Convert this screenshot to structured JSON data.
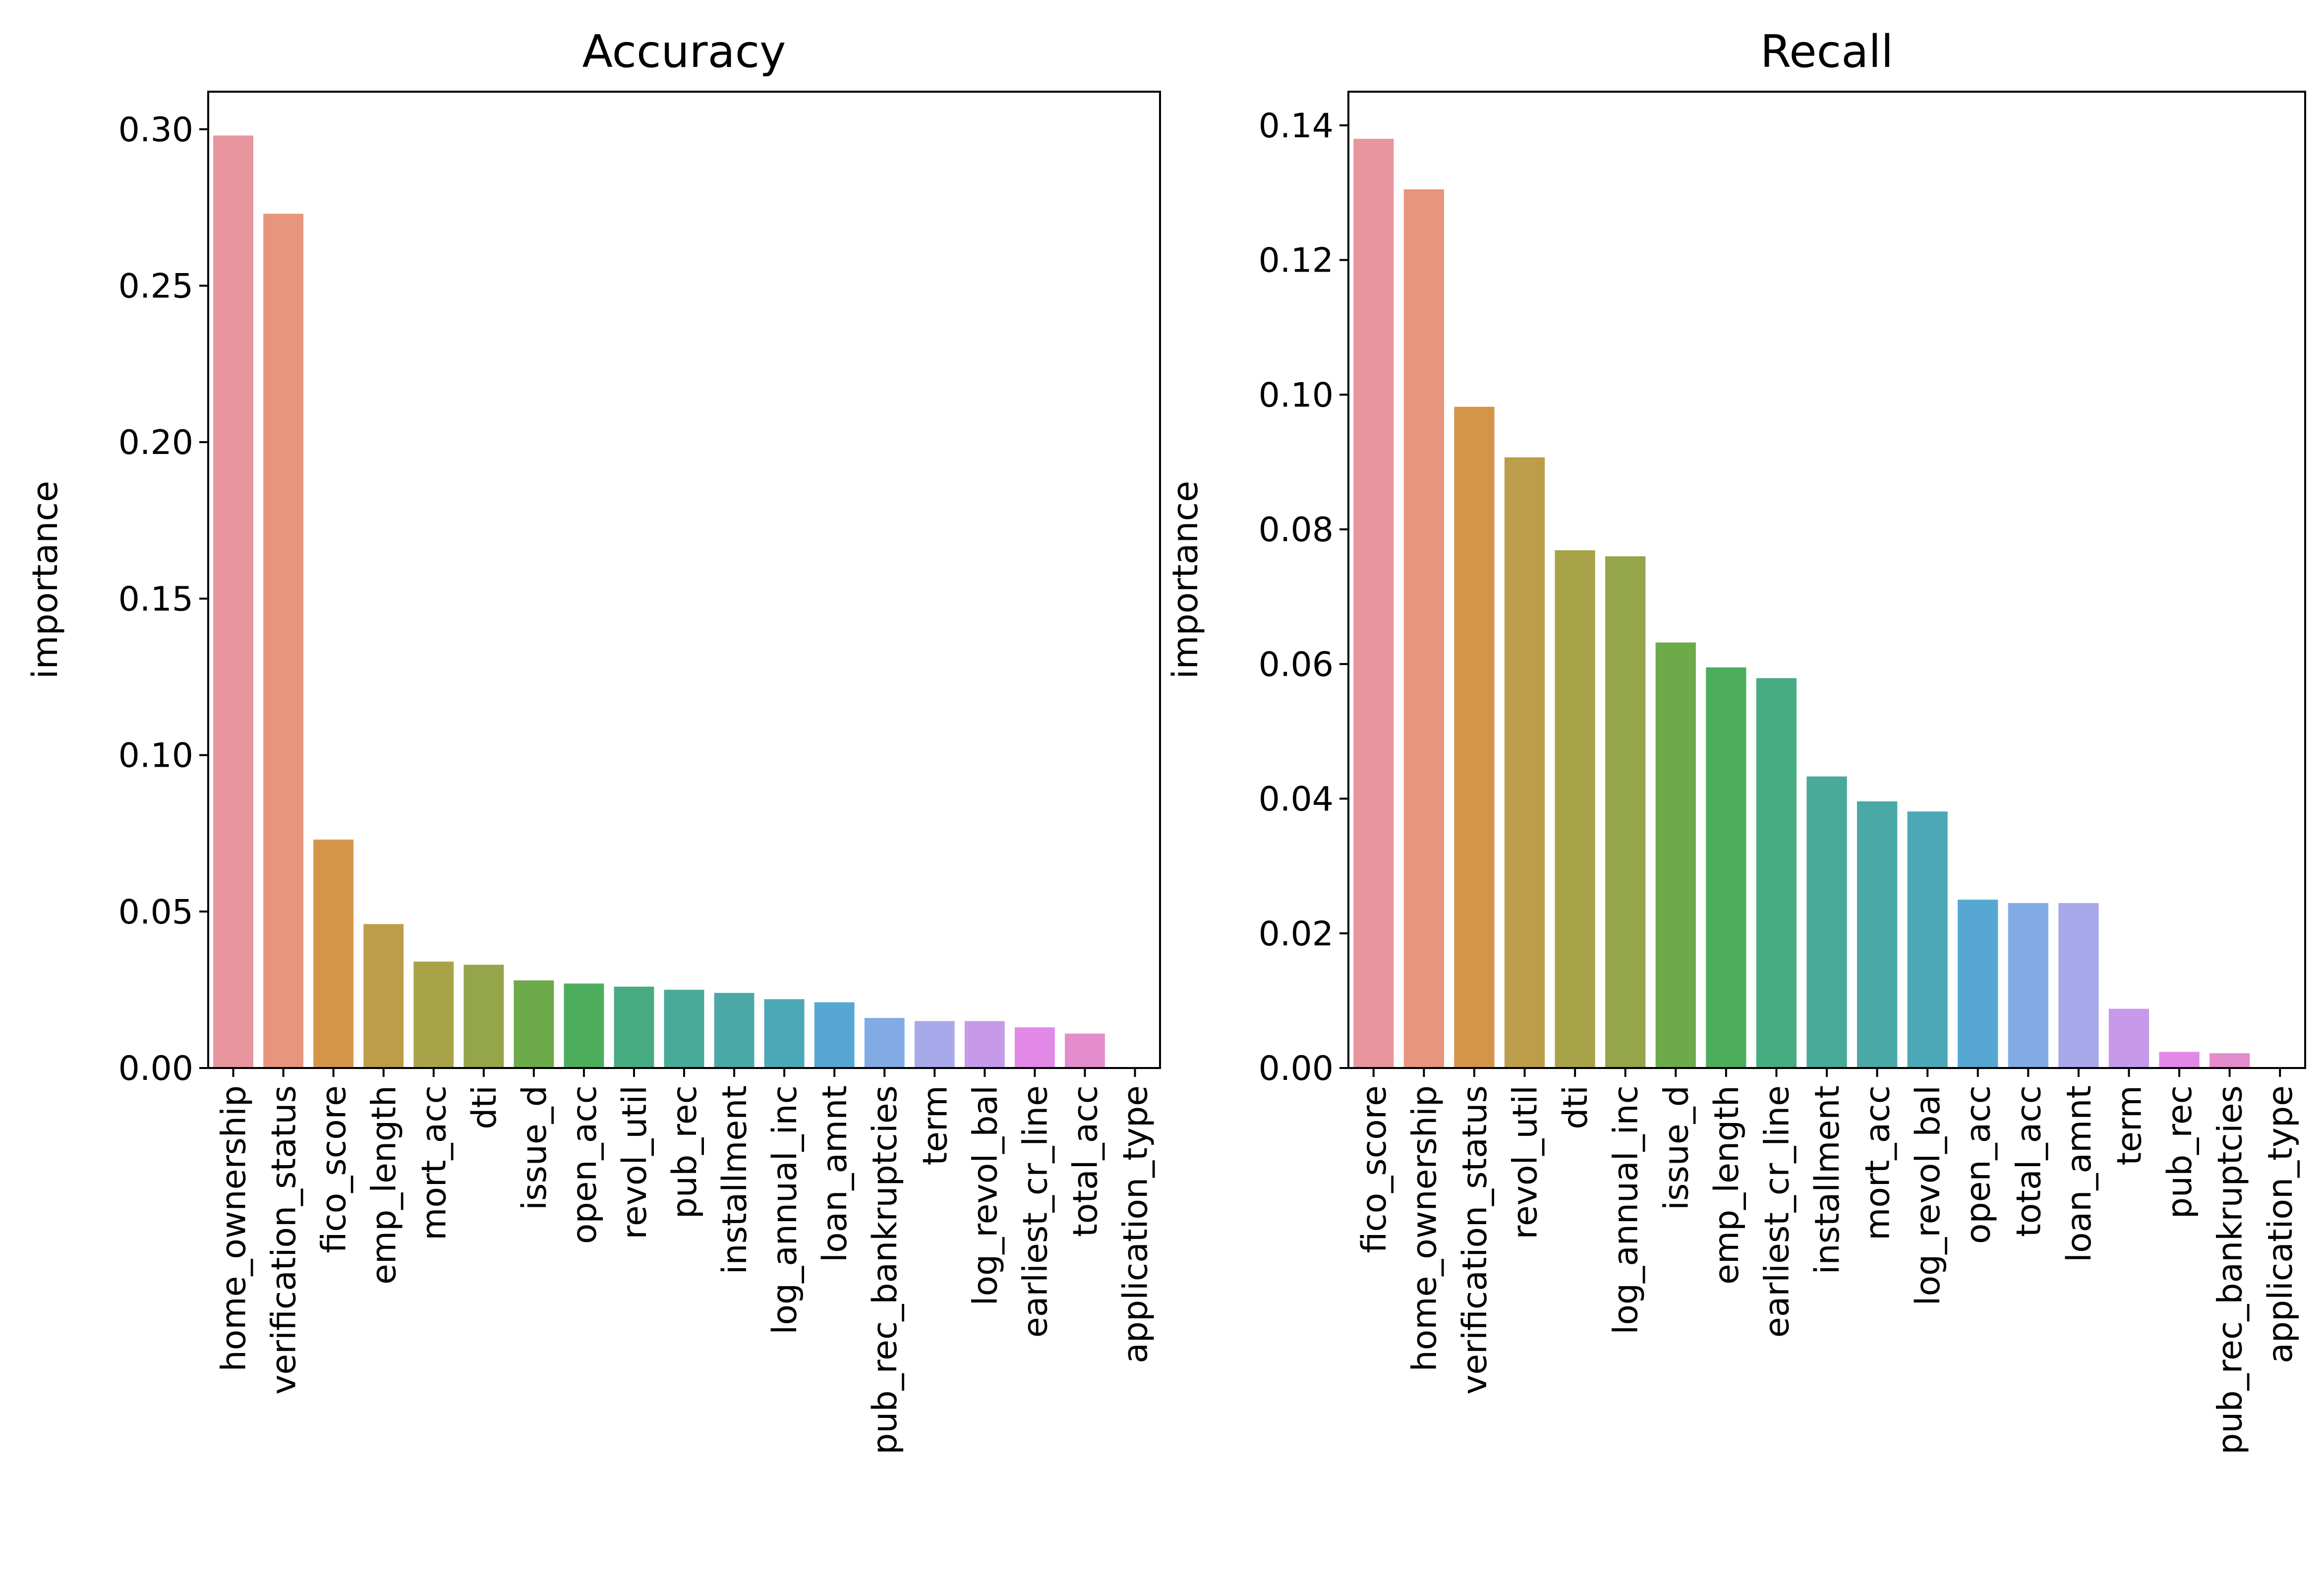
{
  "chart_data": [
    {
      "type": "bar",
      "title": "Accuracy",
      "xlabel": "",
      "ylabel": "importance",
      "ylim": [
        0,
        0.312
      ],
      "yticks": [
        "0.00",
        "0.05",
        "0.10",
        "0.15",
        "0.20",
        "0.25",
        "0.30"
      ],
      "grid": false,
      "categories": [
        "home_ownership",
        "verification_status",
        "fico_score",
        "emp_length",
        "mort_acc",
        "dti",
        "issue_d",
        "open_acc",
        "revol_util",
        "pub_rec",
        "installment",
        "log_annual_inc",
        "loan_amnt",
        "pub_rec_bankruptcies",
        "term",
        "log_revol_bal",
        "earliest_cr_line",
        "total_acc",
        "application_type"
      ],
      "values": [
        0.298,
        0.273,
        0.073,
        0.046,
        0.034,
        0.033,
        0.028,
        0.027,
        0.026,
        0.025,
        0.024,
        0.022,
        0.021,
        0.016,
        0.015,
        0.015,
        0.013,
        0.011,
        0.0
      ],
      "colors": [
        "#e8959e",
        "#e7957c",
        "#d4954b",
        "#bb9d4a",
        "#a8a348",
        "#94a54a",
        "#6daa4a",
        "#4cae5d",
        "#47ab82",
        "#48aa97",
        "#4aa8a6",
        "#4ca8b7",
        "#56a7d1",
        "#82abe4",
        "#a8a9ea",
        "#c69ae8",
        "#e289e7",
        "#e58ccc",
        "#e68fb5"
      ]
    },
    {
      "type": "bar",
      "title": "Recall",
      "xlabel": "",
      "ylabel": "importance",
      "ylim": [
        0,
        0.145
      ],
      "yticks": [
        "0.00",
        "0.02",
        "0.04",
        "0.06",
        "0.08",
        "0.10",
        "0.12",
        "0.14"
      ],
      "grid": false,
      "categories": [
        "fico_score",
        "home_ownership",
        "verification_status",
        "revol_util",
        "dti",
        "log_annual_inc",
        "issue_d",
        "emp_length",
        "earliest_cr_line",
        "installment",
        "mort_acc",
        "log_revol_bal",
        "open_acc",
        "total_acc",
        "loan_amnt",
        "term",
        "pub_rec",
        "pub_rec_bankruptcies",
        "application_type"
      ],
      "values": [
        0.138,
        0.1305,
        0.0982,
        0.0907,
        0.0769,
        0.076,
        0.0632,
        0.0595,
        0.0579,
        0.0433,
        0.0396,
        0.0381,
        0.025,
        0.0245,
        0.0245,
        0.0088,
        0.0024,
        0.0022,
        0.0
      ],
      "colors": [
        "#e8959e",
        "#e7957c",
        "#d4954b",
        "#bb9d4a",
        "#a8a348",
        "#94a54a",
        "#6daa4a",
        "#4cae5d",
        "#47ab82",
        "#48aa97",
        "#4aa8a6",
        "#4ca8b7",
        "#56a7d1",
        "#82abe4",
        "#a8a9ea",
        "#c69ae8",
        "#e289e7",
        "#e58ccc",
        "#e68fb5"
      ]
    }
  ]
}
